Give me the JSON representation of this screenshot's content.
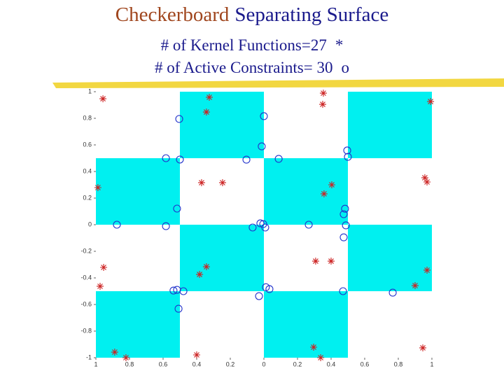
{
  "chart_data": {
    "type": "scatter",
    "title": [
      "Checkerboard",
      "Separating Surface"
    ],
    "subtitles": [
      "# of Kernel Functions=27",
      "# of Active Constraints= 30"
    ],
    "xlim": [
      -1,
      1
    ],
    "ylim": [
      -1,
      1
    ],
    "xticks": [
      {
        "value": -1,
        "label": "1"
      },
      {
        "value": -0.8,
        "label": "0.8"
      },
      {
        "value": -0.6,
        "label": "0.6"
      },
      {
        "value": -0.4,
        "label": "0.4"
      },
      {
        "value": -0.2,
        "label": "0.2"
      },
      0,
      0.2,
      0.4,
      0.6,
      0.8,
      1
    ],
    "yticks": [
      1,
      0.8,
      0.6,
      0.4,
      0.2,
      0,
      -0.2,
      -0.4,
      -0.6,
      -0.8,
      -1
    ],
    "series": [
      {
        "name": "*",
        "color": "#cc2222",
        "x": [
          -0.958,
          -0.325,
          -0.342,
          0.354,
          0.35,
          0.992,
          -0.988,
          -0.371,
          -0.246,
          0.404,
          0.358,
          0.958,
          0.971,
          -0.954,
          -0.975,
          -0.342,
          -0.383,
          0.308,
          0.4,
          0.971,
          0.9,
          -0.888,
          -0.821,
          -0.4,
          0.296,
          0.338,
          0.946
        ],
        "values": [
          0.947,
          0.958,
          0.847,
          0.989,
          0.905,
          0.926,
          0.279,
          0.316,
          0.316,
          0.3,
          0.232,
          0.353,
          0.321,
          -0.321,
          -0.463,
          -0.316,
          -0.374,
          -0.274,
          -0.274,
          -0.342,
          -0.458,
          -0.958,
          -1.0,
          -0.979,
          -0.921,
          -1.0,
          -0.926
        ]
      },
      {
        "name": "o",
        "color": "#2233cc",
        "x": [
          -0.504,
          0,
          -0.013,
          0.496,
          -0.583,
          -0.104,
          0.088,
          -0.517,
          0.475,
          -0.875,
          -0.583,
          -0.067,
          -0.004,
          0.008,
          0.267,
          0.488,
          0.475,
          -0.538,
          -0.479,
          0.033,
          -0.029,
          0.471,
          0.767,
          -0.508,
          0.5,
          -0.5,
          0.012,
          0.483,
          -0.021,
          -0.517
        ],
        "values": [
          0.795,
          0.816,
          0.589,
          0.558,
          0.5,
          0.489,
          0.495,
          0.121,
          0.079,
          0,
          -0.011,
          -0.021,
          0.005,
          -0.021,
          0,
          -0.005,
          -0.095,
          -0.495,
          -0.5,
          -0.484,
          -0.537,
          -0.5,
          -0.511,
          -0.632,
          0.51,
          0.49,
          -0.47,
          0.12,
          0.01,
          -0.49
        ]
      }
    ]
  }
}
